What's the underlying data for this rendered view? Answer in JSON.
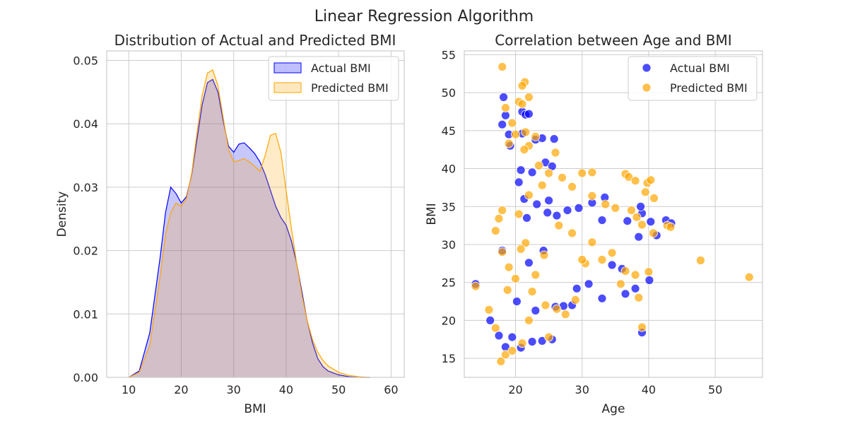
{
  "title": "Linear Regression Algorithm",
  "chart_data": [
    {
      "type": "area",
      "title": "Distribution of Actual and Predicted BMI",
      "xlabel": "BMI",
      "ylabel": "Density",
      "xlim": [
        5.8,
        62.5
      ],
      "ylim": [
        0,
        0.0515
      ],
      "xticks": [
        10,
        20,
        30,
        40,
        50,
        60
      ],
      "yticks": [
        0.0,
        0.01,
        0.02,
        0.03,
        0.04,
        0.05
      ],
      "ytick_labels": [
        "0.00",
        "0.01",
        "0.02",
        "0.03",
        "0.04",
        "0.05"
      ],
      "grid": true,
      "legend": "top-right",
      "x": [
        10,
        12,
        14,
        16,
        17,
        18,
        19,
        20,
        21,
        22,
        23,
        24,
        25,
        26,
        27,
        28,
        29,
        30,
        31,
        32,
        33,
        34,
        35,
        36,
        37,
        38,
        39,
        40,
        41,
        42,
        43,
        44,
        45,
        46,
        47,
        48,
        50,
        52,
        54,
        56
      ],
      "series": [
        {
          "name": "Actual BMI",
          "color": "#0000ff",
          "values": [
            0.0,
            0.001,
            0.007,
            0.019,
            0.026,
            0.03,
            0.029,
            0.0275,
            0.0285,
            0.032,
            0.0375,
            0.043,
            0.0465,
            0.047,
            0.045,
            0.0405,
            0.0365,
            0.0355,
            0.0368,
            0.037,
            0.0362,
            0.0353,
            0.034,
            0.032,
            0.0295,
            0.027,
            0.0252,
            0.024,
            0.0215,
            0.018,
            0.0135,
            0.009,
            0.0055,
            0.003,
            0.0017,
            0.001,
            0.0004,
            0.0001,
            0.0,
            0.0
          ]
        },
        {
          "name": "Predicted BMI",
          "color": "#ffa500",
          "values": [
            0.0,
            0.0008,
            0.005,
            0.016,
            0.0225,
            0.026,
            0.0275,
            0.027,
            0.0282,
            0.0322,
            0.0385,
            0.0445,
            0.048,
            0.0485,
            0.046,
            0.041,
            0.036,
            0.034,
            0.0342,
            0.0345,
            0.034,
            0.0333,
            0.0325,
            0.035,
            0.0382,
            0.0385,
            0.0355,
            0.0295,
            0.0235,
            0.018,
            0.013,
            0.009,
            0.006,
            0.004,
            0.0027,
            0.0018,
            0.0008,
            0.0003,
            0.0001,
            0.0
          ]
        }
      ]
    },
    {
      "type": "scatter",
      "title": "Correlation between Age and BMI",
      "xlabel": "Age",
      "ylabel": "BMI",
      "xlim": [
        12.3,
        57.1
      ],
      "ylim": [
        12.5,
        55.5
      ],
      "xticks": [
        20,
        30,
        40,
        50
      ],
      "yticks": [
        15,
        20,
        25,
        30,
        35,
        40,
        45,
        50,
        55
      ],
      "grid": true,
      "legend": "top-right",
      "series": [
        {
          "name": "Actual BMI",
          "color": "#0000ff",
          "points": [
            [
              18.2,
              49.4
            ],
            [
              18.5,
              47.0
            ],
            [
              18.0,
              45.8
            ],
            [
              19.0,
              44.5
            ],
            [
              21.0,
              47.5
            ],
            [
              21.5,
              47.1
            ],
            [
              22.0,
              47.2
            ],
            [
              21.0,
              44.6
            ],
            [
              23.0,
              43.8
            ],
            [
              24.0,
              44.0
            ],
            [
              25.8,
              43.9
            ],
            [
              20.8,
              39.8
            ],
            [
              22.5,
              39.5
            ],
            [
              24.5,
              40.8
            ],
            [
              25.5,
              40.3
            ],
            [
              21.3,
              36.0
            ],
            [
              23.2,
              35.3
            ],
            [
              24.8,
              34.2
            ],
            [
              26.2,
              33.8
            ],
            [
              27.8,
              34.5
            ],
            [
              29.5,
              34.8
            ],
            [
              31.5,
              35.5
            ],
            [
              33.4,
              36.2
            ],
            [
              33.0,
              33.2
            ],
            [
              36.8,
              33.1
            ],
            [
              38.5,
              31.0
            ],
            [
              39.0,
              34.1
            ],
            [
              40.3,
              33.0
            ],
            [
              41.2,
              31.2
            ],
            [
              42.6,
              33.2
            ],
            [
              43.4,
              32.8
            ],
            [
              38.8,
              35.0
            ],
            [
              14.0,
              24.8
            ],
            [
              16.2,
              20.0
            ],
            [
              17.5,
              18.0
            ],
            [
              18.5,
              16.5
            ],
            [
              19.5,
              17.8
            ],
            [
              20.8,
              16.4
            ],
            [
              22.5,
              17.2
            ],
            [
              24.0,
              17.3
            ],
            [
              25.5,
              17.5
            ],
            [
              26.0,
              21.8
            ],
            [
              27.2,
              21.9
            ],
            [
              28.5,
              22.0
            ],
            [
              29.2,
              24.2
            ],
            [
              31.0,
              24.8
            ],
            [
              33.0,
              22.9
            ],
            [
              36.5,
              23.5
            ],
            [
              38.0,
              24.2
            ],
            [
              39.0,
              18.4
            ],
            [
              40.1,
              25.3
            ],
            [
              34.5,
              27.3
            ],
            [
              36.0,
              26.8
            ],
            [
              22.0,
              27.6
            ],
            [
              24.2,
              29.2
            ],
            [
              23.0,
              21.3
            ],
            [
              20.2,
              22.5
            ],
            [
              18.0,
              29.2
            ],
            [
              21.7,
              33.5
            ],
            [
              25.0,
              35.8
            ],
            [
              20.5,
              38.2
            ],
            [
              19.2,
              43.0
            ]
          ]
        },
        {
          "name": "Predicted BMI",
          "color": "#ffa500",
          "points": [
            [
              18.0,
              53.4
            ],
            [
              21.4,
              51.4
            ],
            [
              21.0,
              50.9
            ],
            [
              22.0,
              49.4
            ],
            [
              20.5,
              48.8
            ],
            [
              18.5,
              48.0
            ],
            [
              21.0,
              48.5
            ],
            [
              19.5,
              46.0
            ],
            [
              20.0,
              44.5
            ],
            [
              21.5,
              44.8
            ],
            [
              23.0,
              44.2
            ],
            [
              22.0,
              43.0
            ],
            [
              21.3,
              42.5
            ],
            [
              19.0,
              43.3
            ],
            [
              26.0,
              42.1
            ],
            [
              23.5,
              40.4
            ],
            [
              25.0,
              39.4
            ],
            [
              27.0,
              38.8
            ],
            [
              28.5,
              37.6
            ],
            [
              30.0,
              39.4
            ],
            [
              31.5,
              39.5
            ],
            [
              36.5,
              39.3
            ],
            [
              37.0,
              38.9
            ],
            [
              38.0,
              38.4
            ],
            [
              39.8,
              38.1
            ],
            [
              40.3,
              38.5
            ],
            [
              39.5,
              36.9
            ],
            [
              40.8,
              36.1
            ],
            [
              33.5,
              35.3
            ],
            [
              35.0,
              34.8
            ],
            [
              37.4,
              34.5
            ],
            [
              38.2,
              33.6
            ],
            [
              39.0,
              32.6
            ],
            [
              40.7,
              31.5
            ],
            [
              42.8,
              32.5
            ],
            [
              43.3,
              32.3
            ],
            [
              24.0,
              37.8
            ],
            [
              22.0,
              36.5
            ],
            [
              20.5,
              34.0
            ],
            [
              18.0,
              34.5
            ],
            [
              17.5,
              33.4
            ],
            [
              17.0,
              31.8
            ],
            [
              18.0,
              29.0
            ],
            [
              14.0,
              24.5
            ],
            [
              16.0,
              21.4
            ],
            [
              17.0,
              19.0
            ],
            [
              17.8,
              14.6
            ],
            [
              18.5,
              15.5
            ],
            [
              19.5,
              16.0
            ],
            [
              21.0,
              17.0
            ],
            [
              22.0,
              20.0
            ],
            [
              24.5,
              22.0
            ],
            [
              25.0,
              17.8
            ],
            [
              26.2,
              21.5
            ],
            [
              27.5,
              20.8
            ],
            [
              29.0,
              22.7
            ],
            [
              30.5,
              27.5
            ],
            [
              31.5,
              30.3
            ],
            [
              33.0,
              28.0
            ],
            [
              34.5,
              28.9
            ],
            [
              35.8,
              24.8
            ],
            [
              36.5,
              26.5
            ],
            [
              38.0,
              26.0
            ],
            [
              38.5,
              23.0
            ],
            [
              39.0,
              19.1
            ],
            [
              40.0,
              26.4
            ],
            [
              47.8,
              27.9
            ],
            [
              55.1,
              25.7
            ],
            [
              23.0,
              26.0
            ],
            [
              22.5,
              23.8
            ],
            [
              20.0,
              25.5
            ],
            [
              19.0,
              27.0
            ],
            [
              26.5,
              32.5
            ],
            [
              28.5,
              31.5
            ],
            [
              31.5,
              36.4
            ],
            [
              30.0,
              28.0
            ],
            [
              21.5,
              30.2
            ],
            [
              24.3,
              28.6
            ],
            [
              18.8,
              24.0
            ],
            [
              20.8,
              29.4
            ]
          ]
        }
      ]
    }
  ]
}
